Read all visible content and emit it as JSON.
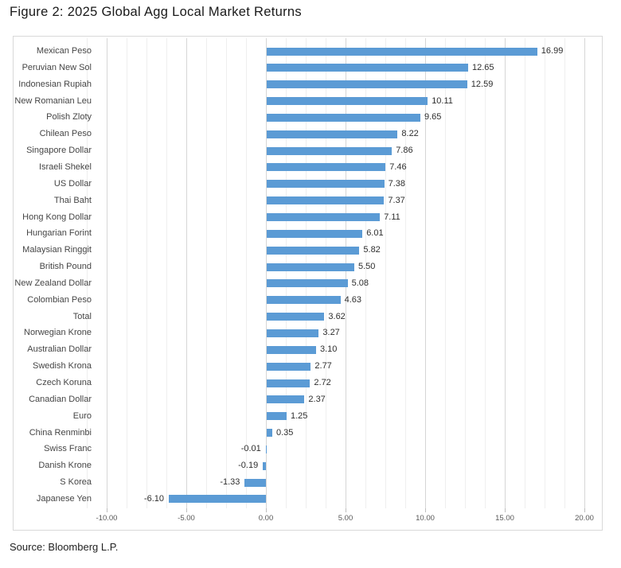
{
  "title": "Figure 2: 2025 Global Agg Local Market Returns",
  "source": "Source: Bloomberg L.P.",
  "chart_data": {
    "type": "bar",
    "orientation": "horizontal",
    "title": "Figure 2: 2025 Global Agg Local Market Returns",
    "source": "Source: Bloomberg L.P.",
    "categories": [
      "Mexican Peso",
      "Peruvian New Sol",
      "Indonesian Rupiah",
      "New Romanian Leu",
      "Polish Zloty",
      "Chilean Peso",
      "Singapore Dollar",
      "Israeli Shekel",
      "US Dollar",
      "Thai Baht",
      "Hong Kong Dollar",
      "Hungarian Forint",
      "Malaysian Ringgit",
      "British Pound",
      "New Zealand Dollar",
      "Colombian Peso",
      "Total",
      "Norwegian Krone",
      "Australian Dollar",
      "Swedish Krona",
      "Czech Koruna",
      "Canadian Dollar",
      "Euro",
      "China Renminbi",
      "Swiss Franc",
      "Danish Krone",
      "S Korea",
      "Japanese Yen"
    ],
    "values": [
      16.99,
      12.65,
      12.59,
      10.11,
      9.65,
      8.22,
      7.86,
      7.46,
      7.38,
      7.37,
      7.11,
      6.01,
      5.82,
      5.5,
      5.08,
      4.63,
      3.62,
      3.27,
      3.1,
      2.77,
      2.72,
      2.37,
      1.25,
      0.35,
      -0.01,
      -0.19,
      -1.33,
      -6.1
    ],
    "value_labels": [
      "16.99",
      "12.65",
      "12.59",
      "10.11",
      "9.65",
      "8.22",
      "7.86",
      "7.46",
      "7.38",
      "7.37",
      "7.11",
      "6.01",
      "5.82",
      "5.50",
      "5.08",
      "4.63",
      "3.62",
      "3.27",
      "3.10",
      "2.77",
      "2.72",
      "2.37",
      "1.25",
      "0.35",
      "-0.01",
      "-0.19",
      "-1.33",
      "-6.10"
    ],
    "x_axis": {
      "tick_labels": [
        "-10.00",
        "-5.00",
        "0.00",
        "5.00",
        "10.00",
        "15.00",
        "20.00"
      ],
      "tick_values": [
        -10,
        -5,
        0,
        5,
        10,
        15,
        20
      ],
      "min": -11.25,
      "max": 21.25,
      "minor_step": 1.25,
      "major_step": 5
    },
    "bar_color": "#5b9bd5",
    "gridline_minor_color": "#efefef",
    "gridline_major_color": "#d6d6d6",
    "grid": "on",
    "legend": "none"
  }
}
